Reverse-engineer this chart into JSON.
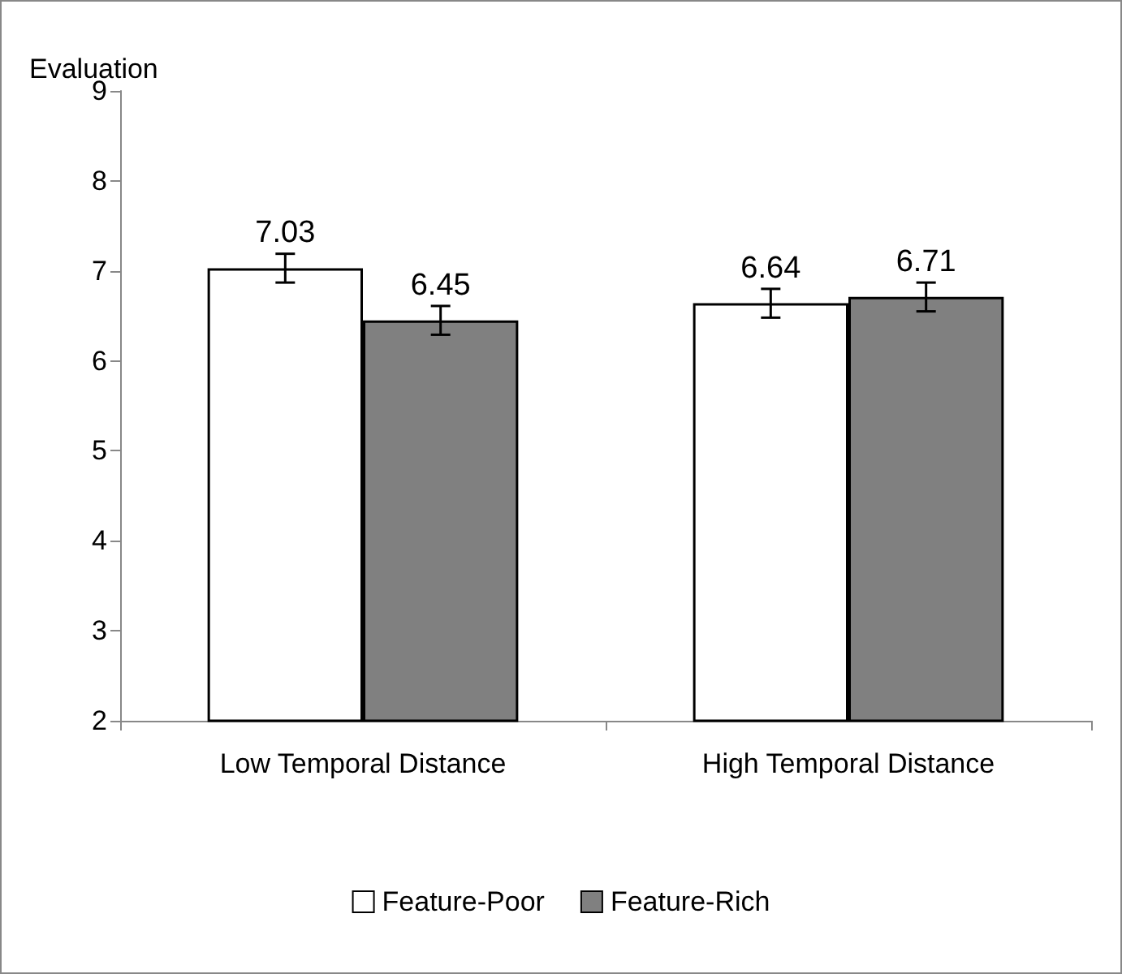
{
  "chart_data": {
    "type": "bar",
    "ylabel": "Evaluation",
    "categories": [
      "Low Temporal Distance",
      "High Temporal Distance"
    ],
    "series": [
      {
        "name": "Feature-Poor",
        "color": "#ffffff",
        "values": [
          7.03,
          6.64
        ],
        "errors": [
          0.16,
          0.16
        ]
      },
      {
        "name": "Feature-Rich",
        "color": "#808080",
        "values": [
          6.45,
          6.71
        ],
        "errors": [
          0.16,
          0.16
        ]
      }
    ],
    "ylim": [
      2,
      9
    ],
    "yticks": [
      2,
      3,
      4,
      5,
      6,
      7,
      8,
      9
    ],
    "grid": false,
    "legend": "bottom",
    "data_labels": true
  }
}
